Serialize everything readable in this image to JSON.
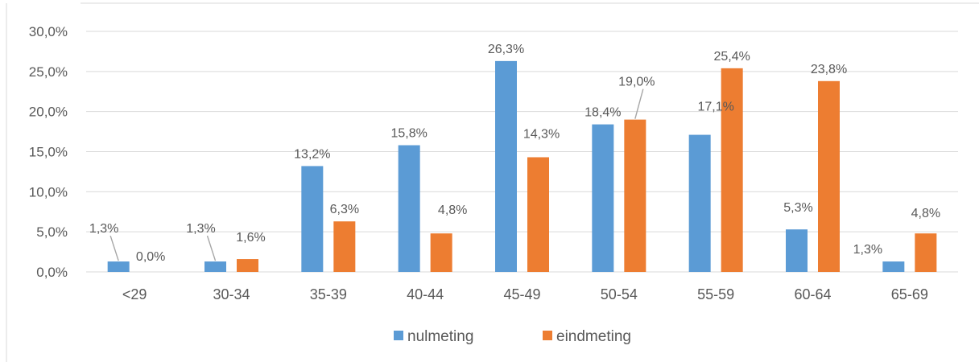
{
  "caption_fragment": "",
  "colors": {
    "nulmeting": "#5B9BD5",
    "eindmeting": "#ED7D31",
    "grid": "#D9D9D9",
    "text": "#595959",
    "leader": "#A6A6A6"
  },
  "chart_data": {
    "type": "bar",
    "categories": [
      "<29",
      "30-34",
      "35-39",
      "40-44",
      "45-49",
      "50-54",
      "55-59",
      "60-64",
      "65-69"
    ],
    "series": [
      {
        "name": "nulmeting",
        "values": [
          1.3,
          1.3,
          13.2,
          15.8,
          26.3,
          18.4,
          17.1,
          5.3,
          1.3
        ],
        "labels": [
          "1,3%",
          "1,3%",
          "13,2%",
          "15,8%",
          "26,3%",
          "18,4%",
          "17,1%",
          "5,3%",
          "1,3%"
        ]
      },
      {
        "name": "eindmeting",
        "values": [
          0.0,
          1.6,
          6.3,
          4.8,
          14.3,
          19.0,
          25.4,
          23.8,
          4.8
        ],
        "labels": [
          "0,0%",
          "1,6%",
          "6,3%",
          "4,8%",
          "14,3%",
          "19,0%",
          "25,4%",
          "23,8%",
          "4,8%"
        ]
      }
    ],
    "y_ticks": [
      "0,0%",
      "5,0%",
      "10,0%",
      "15,0%",
      "20,0%",
      "25,0%",
      "30,0%"
    ],
    "ylim": [
      0,
      30
    ],
    "grid": true,
    "legend_position": "bottom",
    "title": "",
    "xlabel": "",
    "ylabel": ""
  }
}
